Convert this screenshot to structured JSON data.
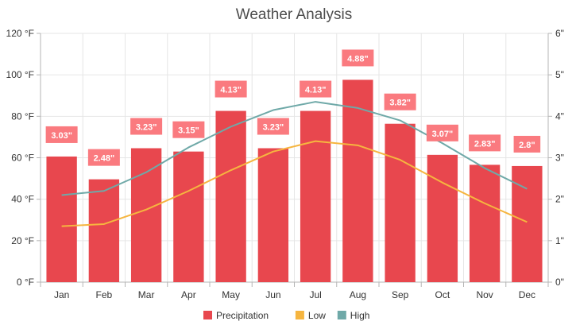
{
  "chart_data": {
    "type": "bar",
    "title": "Weather Analysis",
    "categories": [
      "Jan",
      "Feb",
      "Mar",
      "Apr",
      "May",
      "Jun",
      "Jul",
      "Aug",
      "Sep",
      "Oct",
      "Nov",
      "Dec"
    ],
    "y_left": {
      "ticks": [
        "0 °F",
        "20 °F",
        "40 °F",
        "60 °F",
        "80 °F",
        "100 °F",
        "120 °F"
      ],
      "range": [
        0,
        120
      ]
    },
    "y_right": {
      "ticks": [
        "0\"",
        "1\"",
        "2\"",
        "3\"",
        "4\"",
        "5\"",
        "6\""
      ],
      "range": [
        0,
        6
      ]
    },
    "series": [
      {
        "name": "Precipitation",
        "type": "bar",
        "axis": "right",
        "color": "#e8474e",
        "values": [
          3.03,
          2.48,
          3.23,
          3.15,
          4.13,
          3.23,
          4.13,
          4.88,
          3.82,
          3.07,
          2.83,
          2.8
        ],
        "labels": [
          "3.03\"",
          "2.48\"",
          "3.23\"",
          "3.15\"",
          "4.13\"",
          "3.23\"",
          "4.13\"",
          "4.88\"",
          "3.82\"",
          "3.07\"",
          "2.83\"",
          "2.8\""
        ],
        "label_color": "#fa7a7f"
      },
      {
        "name": "Low",
        "type": "line",
        "axis": "left",
        "color": "#f6b53f",
        "values": [
          27,
          28,
          35,
          44,
          54,
          63,
          68,
          66,
          59,
          48,
          38,
          29
        ]
      },
      {
        "name": "High",
        "type": "line",
        "axis": "left",
        "color": "#6fa9a8",
        "values": [
          42,
          44,
          53,
          65,
          75,
          83,
          87,
          84,
          78,
          67,
          55,
          45
        ]
      }
    ],
    "grid": true,
    "legend": "bottom"
  }
}
